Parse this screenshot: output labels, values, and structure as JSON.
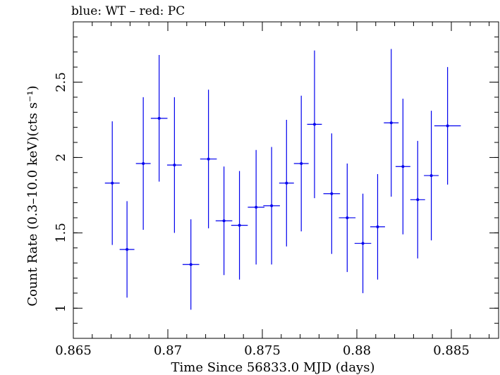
{
  "chart_data": {
    "type": "scatter",
    "title": "blue: WT – red: PC",
    "xlabel": "Time Since 56833.0 MJD (days)",
    "ylabel": "Count Rate (0.3–10.0 keV)(cts s⁻¹)",
    "xlim": [
      0.865,
      0.8875
    ],
    "ylim": [
      0.8,
      2.9
    ],
    "x_ticks": [
      0.865,
      0.87,
      0.875,
      0.88,
      0.885
    ],
    "x_tick_labels": [
      "0.865",
      "0.87",
      "0.875",
      "0.88",
      "0.885"
    ],
    "y_ticks": [
      1,
      1.5,
      2,
      2.5
    ],
    "y_tick_labels": [
      "1",
      "1.5",
      "2",
      "2.5"
    ],
    "grid": false,
    "series": [
      {
        "color": "#0000ee",
        "points": [
          {
            "x": 0.86706,
            "xerr": 0.00039,
            "y": 1.83,
            "yerr": 0.41
          },
          {
            "x": 0.86784,
            "xerr": 0.00039,
            "y": 1.39,
            "yerr": 0.32
          },
          {
            "x": 0.8687,
            "xerr": 0.00039,
            "y": 1.96,
            "yerr": 0.44
          },
          {
            "x": 0.86954,
            "xerr": 0.00044,
            "y": 2.26,
            "yerr": 0.42
          },
          {
            "x": 0.87035,
            "xerr": 0.00039,
            "y": 1.95,
            "yerr": 0.45
          },
          {
            "x": 0.87122,
            "xerr": 0.00044,
            "y": 1.29,
            "yerr": 0.3
          },
          {
            "x": 0.87215,
            "xerr": 0.00044,
            "y": 1.99,
            "yerr": 0.46
          },
          {
            "x": 0.87297,
            "xerr": 0.00044,
            "y": 1.58,
            "yerr": 0.36
          },
          {
            "x": 0.87379,
            "xerr": 0.00044,
            "y": 1.55,
            "yerr": 0.36
          },
          {
            "x": 0.87467,
            "xerr": 0.00044,
            "y": 1.67,
            "yerr": 0.38
          },
          {
            "x": 0.87549,
            "xerr": 0.00044,
            "y": 1.68,
            "yerr": 0.39
          },
          {
            "x": 0.87628,
            "xerr": 0.00039,
            "y": 1.83,
            "yerr": 0.42
          },
          {
            "x": 0.87706,
            "xerr": 0.00039,
            "y": 1.96,
            "yerr": 0.45
          },
          {
            "x": 0.87776,
            "xerr": 0.00039,
            "y": 2.22,
            "yerr": 0.49
          },
          {
            "x": 0.87867,
            "xerr": 0.00044,
            "y": 1.76,
            "yerr": 0.4
          },
          {
            "x": 0.87949,
            "xerr": 0.00044,
            "y": 1.6,
            "yerr": 0.36
          },
          {
            "x": 0.88032,
            "xerr": 0.00044,
            "y": 1.43,
            "yerr": 0.33
          },
          {
            "x": 0.8811,
            "xerr": 0.00039,
            "y": 1.54,
            "yerr": 0.35
          },
          {
            "x": 0.88182,
            "xerr": 0.00039,
            "y": 2.23,
            "yerr": 0.49
          },
          {
            "x": 0.88244,
            "xerr": 0.00039,
            "y": 1.94,
            "yerr": 0.45
          },
          {
            "x": 0.88322,
            "xerr": 0.00039,
            "y": 1.72,
            "yerr": 0.39
          },
          {
            "x": 0.88394,
            "xerr": 0.00039,
            "y": 1.88,
            "yerr": 0.43
          },
          {
            "x": 0.8848,
            "xerr": 0.0007,
            "y": 2.21,
            "yerr": 0.39
          }
        ]
      }
    ]
  }
}
